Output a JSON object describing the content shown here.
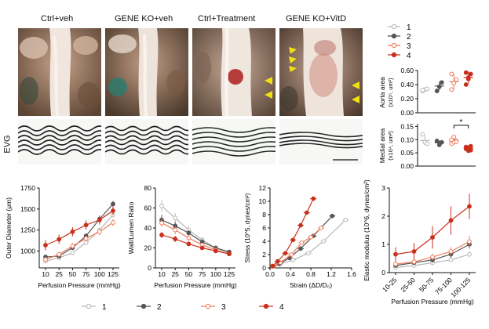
{
  "panels": {
    "photo_titles": [
      "Ctrl+veh",
      "GENE KO+veh",
      "Ctrl+Treatment",
      "GENE KO+VitD"
    ],
    "evg_label": "EVG"
  },
  "legend_top": [
    "1",
    "2",
    "3",
    "4"
  ],
  "legend_bottom": [
    "1",
    "2",
    "3",
    "4"
  ],
  "colors": {
    "g1": "#b8b8b8",
    "g2": "#555555",
    "g3": "#ef7a5a",
    "g4": "#c9301c",
    "arrow": "#f3e00f"
  },
  "chart_data": [
    {
      "id": "aorta_area",
      "type": "scatter",
      "ylabel": [
        "Aorta area",
        "(x10⁵, um²)"
      ],
      "yticks": [
        "0.00",
        "0.20",
        "0.40",
        "0.60"
      ],
      "ylim": [
        0,
        0.6
      ],
      "groups": [
        {
          "name": "1",
          "points": [
            0.31,
            0.33,
            0.34,
            0.32
          ],
          "mean": 0.33
        },
        {
          "name": "2",
          "points": [
            0.31,
            0.37,
            0.43
          ],
          "mean": 0.38
        },
        {
          "name": "3",
          "points": [
            0.33,
            0.42,
            0.47,
            0.55
          ],
          "mean": 0.44
        },
        {
          "name": "4",
          "points": [
            0.4,
            0.48,
            0.55,
            0.57,
            0.5
          ],
          "mean": 0.5
        }
      ]
    },
    {
      "id": "medial_area",
      "type": "scatter",
      "ylabel": [
        "Medial area",
        "(x10⁴, um²)"
      ],
      "yticks": [
        "0.00",
        "0.05",
        "0.10",
        "0.15"
      ],
      "ylim": [
        0,
        0.16
      ],
      "significance": {
        "between": [
          "3",
          "4"
        ],
        "label": "*"
      },
      "groups": [
        {
          "name": "1",
          "points": [
            0.12,
            0.09,
            0.085
          ],
          "mean": 0.097
        },
        {
          "name": "2",
          "points": [
            0.095,
            0.08,
            0.09
          ],
          "mean": 0.088
        },
        {
          "name": "3",
          "points": [
            0.085,
            0.09,
            0.095,
            0.1,
            0.11,
            0.092
          ],
          "mean": 0.095
        },
        {
          "name": "4",
          "points": [
            0.065,
            0.07,
            0.06,
            0.072,
            0.058,
            0.075,
            0.068
          ],
          "mean": 0.067
        }
      ]
    },
    {
      "id": "outer_diameter",
      "type": "line",
      "xlabel": "Perfusion Pressure (mmHg)",
      "ylabel": "Outer Diameter (μm)",
      "x": [
        10,
        25,
        50,
        75,
        100,
        125
      ],
      "yticks": [
        "1000",
        "1250",
        "1500",
        "1750"
      ],
      "ylim": [
        800,
        1750
      ],
      "series": [
        {
          "name": "1",
          "values": [
            880,
            920,
            980,
            1100,
            1250,
            1430
          ],
          "err": [
            20,
            20,
            20,
            25,
            25,
            30
          ]
        },
        {
          "name": "2",
          "values": [
            930,
            940,
            1040,
            1180,
            1380,
            1560
          ],
          "err": [
            25,
            25,
            25,
            30,
            30,
            35
          ]
        },
        {
          "name": "3",
          "values": [
            900,
            960,
            1060,
            1150,
            1230,
            1340
          ],
          "err": [
            30,
            30,
            35,
            35,
            40,
            40
          ]
        },
        {
          "name": "4",
          "values": [
            1070,
            1140,
            1230,
            1310,
            1370,
            1480
          ],
          "err": [
            60,
            55,
            55,
            55,
            55,
            55
          ]
        }
      ]
    },
    {
      "id": "wall_lumen",
      "type": "line",
      "xlabel": "Perfusion Pressure (mmHg)",
      "ylabel": "Wall/Lumen Ratio",
      "x": [
        10,
        25,
        50,
        75,
        100,
        125
      ],
      "yticks": [
        "0",
        "20",
        "40",
        "60",
        "80"
      ],
      "ylim": [
        0,
        80
      ],
      "series": [
        {
          "name": "1",
          "values": [
            62,
            50,
            38,
            28,
            20,
            15
          ],
          "err": [
            6,
            5,
            4,
            3,
            2,
            2
          ]
        },
        {
          "name": "2",
          "values": [
            48,
            42,
            35,
            26,
            20,
            16
          ],
          "err": [
            5,
            4,
            3,
            3,
            2,
            2
          ]
        },
        {
          "name": "3",
          "values": [
            45,
            38,
            30,
            23,
            18,
            14
          ],
          "err": [
            4,
            4,
            3,
            2,
            2,
            2
          ]
        },
        {
          "name": "4",
          "values": [
            33,
            29,
            24,
            20,
            17,
            14
          ],
          "err": [
            3,
            3,
            2,
            2,
            2,
            2
          ]
        }
      ]
    },
    {
      "id": "stress_strain",
      "type": "line",
      "xlabel": "Strain (ΔD/D₀)",
      "ylabel": "Stress (10^5, dynes/cm²)",
      "xticks": [
        "0.0",
        "0.4",
        "0.8",
        "1.2",
        "1.6"
      ],
      "xlim": [
        0,
        1.6
      ],
      "yticks": [
        "0",
        "2",
        "4",
        "6",
        "8",
        "10",
        "12"
      ],
      "ylim": [
        0,
        12
      ],
      "series": [
        {
          "name": "1",
          "points": [
            [
              0.05,
              0.2
            ],
            [
              0.2,
              0.6
            ],
            [
              0.45,
              1.2
            ],
            [
              0.75,
              2.2
            ],
            [
              1.05,
              4.0
            ],
            [
              1.48,
              7.2
            ]
          ]
        },
        {
          "name": "2",
          "points": [
            [
              0.05,
              0.2
            ],
            [
              0.18,
              0.6
            ],
            [
              0.38,
              1.5
            ],
            [
              0.6,
              2.9
            ],
            [
              0.85,
              4.8
            ],
            [
              1.22,
              7.8
            ]
          ]
        },
        {
          "name": "3",
          "points": [
            [
              0.05,
              0.2
            ],
            [
              0.2,
              0.8
            ],
            [
              0.42,
              2.0
            ],
            [
              0.62,
              3.8
            ],
            [
              0.8,
              4.6
            ],
            [
              1.0,
              6.0
            ]
          ]
        },
        {
          "name": "4",
          "points": [
            [
              0.05,
              0.3
            ],
            [
              0.15,
              1.0
            ],
            [
              0.3,
              2.2
            ],
            [
              0.45,
              4.2
            ],
            [
              0.6,
              6.4
            ],
            [
              0.72,
              8.3
            ],
            [
              0.85,
              10.4
            ]
          ]
        }
      ]
    },
    {
      "id": "elastic_modulus",
      "type": "line",
      "xlabel": "Perfusion Pressure (mmHg)",
      "ylabel": "Elastic modulus (10^6, dynes/cm²)",
      "categories": [
        "10-25",
        "25-50",
        "50-75",
        "75-100",
        "100-125"
      ],
      "yticks": [
        "0",
        "1",
        "2",
        "3"
      ],
      "ylim": [
        0,
        3
      ],
      "series": [
        {
          "name": "1",
          "values": [
            0.18,
            0.25,
            0.35,
            0.45,
            0.65
          ],
          "err": [
            0.05,
            0.05,
            0.06,
            0.08,
            0.1
          ]
        },
        {
          "name": "2",
          "values": [
            0.25,
            0.35,
            0.45,
            0.65,
            1.0
          ],
          "err": [
            0.08,
            0.08,
            0.1,
            0.12,
            0.15
          ]
        },
        {
          "name": "3",
          "values": [
            0.3,
            0.38,
            0.55,
            0.75,
            1.1
          ],
          "err": [
            0.1,
            0.1,
            0.12,
            0.15,
            0.2
          ]
        },
        {
          "name": "4",
          "values": [
            0.65,
            0.75,
            1.25,
            1.85,
            2.35
          ],
          "err": [
            0.25,
            0.3,
            0.4,
            0.5,
            0.45
          ]
        }
      ]
    }
  ]
}
